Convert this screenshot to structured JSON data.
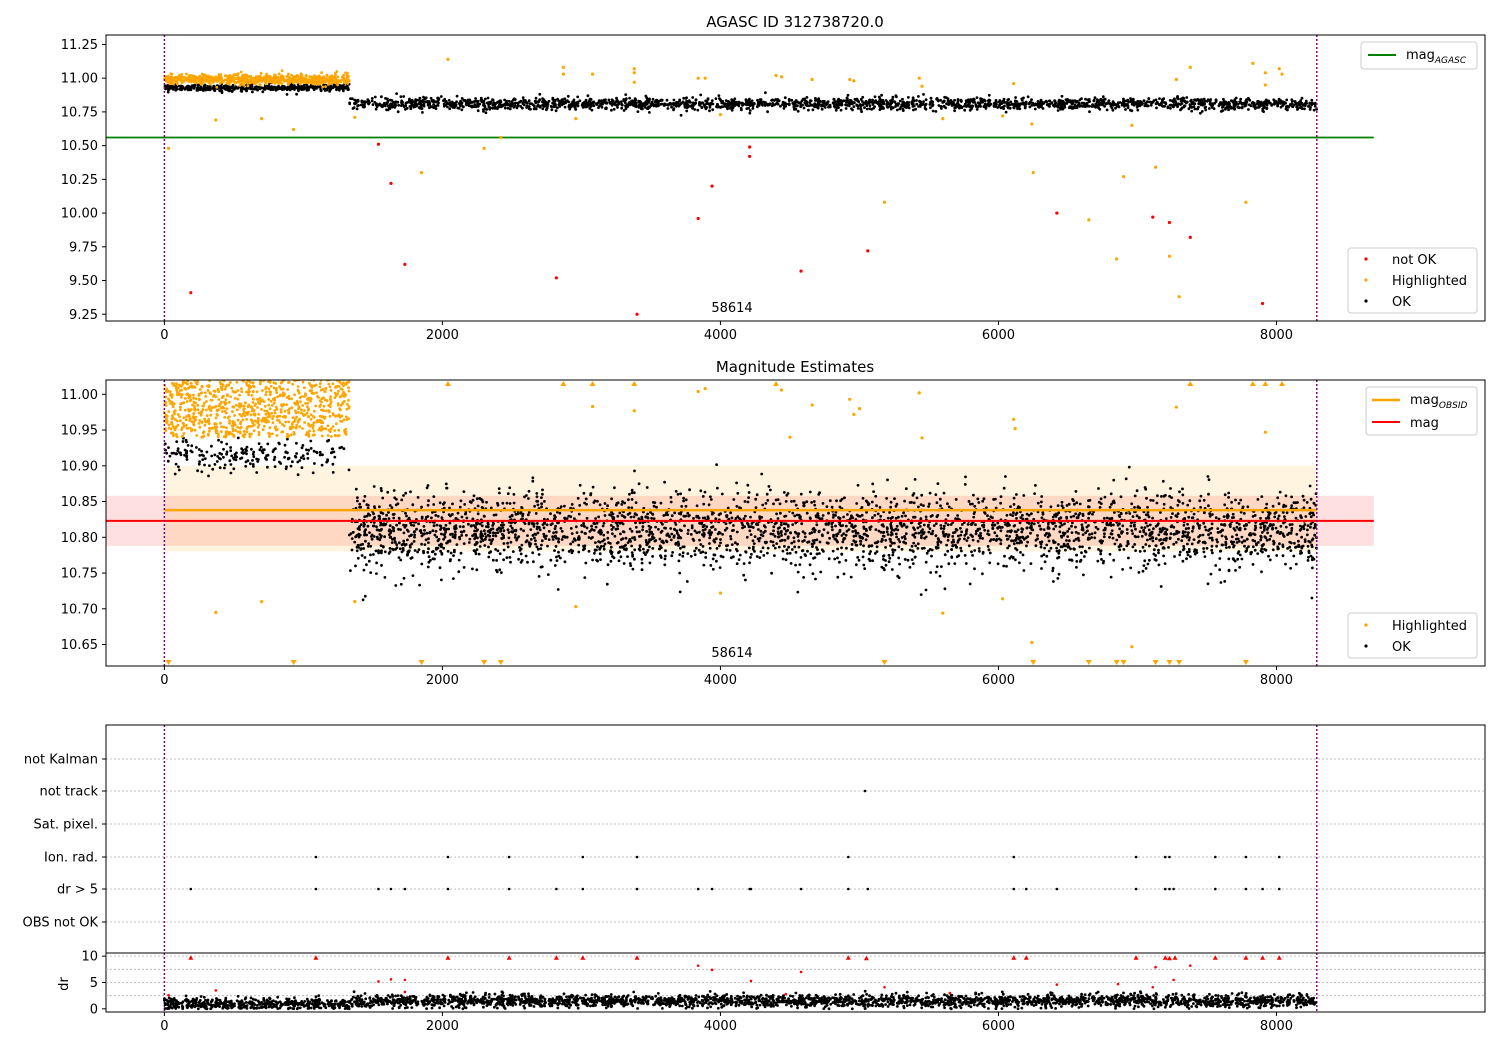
{
  "panels": {
    "top": {
      "title": "AGASC ID 312738720.0",
      "xlim": [
        -420,
        9500
      ],
      "ylim": [
        9.2,
        11.32
      ],
      "xticks": [
        0,
        2000,
        4000,
        6000,
        8000
      ],
      "yticks": [
        9.25,
        9.5,
        9.75,
        10.0,
        10.25,
        10.5,
        10.75,
        11.0,
        11.25
      ],
      "ytick_labels": [
        "9.25",
        "9.50",
        "9.75",
        "10.00",
        "10.25",
        "10.50",
        "10.75",
        "11.00",
        "11.25"
      ],
      "vlines": [
        0,
        8290
      ],
      "obsid_label": "58614",
      "obsid_label_x": 4000,
      "legend_lines": [
        {
          "label": "mag",
          "sub": "AGASC",
          "color": "#008000"
        }
      ],
      "legend_points": [
        {
          "label": "not OK",
          "color": "#ff0000"
        },
        {
          "label": "Highlighted",
          "color": "#ffa500"
        },
        {
          "label": "OK",
          "color": "#000000"
        }
      ],
      "hline": {
        "y": 10.56,
        "x0": -420,
        "x1": 8700,
        "color": "#008000"
      }
    },
    "middle": {
      "title": "Magnitude Estimates",
      "xlim": [
        -420,
        9500
      ],
      "ylim": [
        10.62,
        11.02
      ],
      "xticks": [
        0,
        2000,
        4000,
        6000,
        8000
      ],
      "yticks": [
        10.65,
        10.7,
        10.75,
        10.8,
        10.85,
        10.9,
        10.95,
        11.0
      ],
      "ytick_labels": [
        "10.65",
        "10.70",
        "10.75",
        "10.80",
        "10.85",
        "10.90",
        "10.95",
        "11.00"
      ],
      "vlines": [
        0,
        8290
      ],
      "obsid_label": "58614",
      "obsid_label_x": 4000,
      "legend_lines": [
        {
          "label": "mag",
          "sub": "OBSID",
          "color": "#ffa500"
        },
        {
          "label": "mag",
          "sub": "",
          "color": "#ff0000"
        }
      ],
      "legend_points": [
        {
          "label": "Highlighted",
          "color": "#ffa500"
        },
        {
          "label": "OK",
          "color": "#000000"
        }
      ],
      "mag_line": {
        "y": 10.823,
        "band": [
          10.788,
          10.858
        ],
        "x0": -420,
        "x1": 8700
      },
      "obsid_line": {
        "y": 10.838,
        "band": [
          10.78,
          10.9
        ],
        "x0": 0,
        "x1": 8290
      }
    },
    "flags": {
      "xlim": [
        -420,
        9500
      ],
      "xticks": [
        0,
        2000,
        4000,
        6000,
        8000
      ],
      "vlines": [
        0,
        8290
      ],
      "categories": [
        "not Kalman",
        "not track",
        "Sat. pixel.",
        "Ion. rad.",
        "dr > 5",
        "OBS not OK"
      ],
      "events": {
        "not track": [
          5040
        ],
        "Ion. rad.": [
          1090,
          2040,
          2480,
          3010,
          3400,
          4920,
          6110,
          6990,
          7200,
          7230,
          7560,
          7780,
          8020
        ],
        "dr > 5": [
          190,
          1090,
          1540,
          1630,
          1730,
          2040,
          2480,
          2820,
          3010,
          3400,
          3840,
          3940,
          4210,
          4220,
          4580,
          4920,
          5060,
          6110,
          6200,
          6420,
          6990,
          7200,
          7230,
          7260,
          7560,
          7780,
          7900,
          8020
        ]
      },
      "dr_ylabel": "dr",
      "dr_yticks": [
        0,
        5,
        10
      ],
      "dr_ylim": [
        -0.6,
        10.6
      ],
      "dr_red": [
        {
          "x": 190,
          "y": 9.7
        },
        {
          "x": 1090,
          "y": 9.7
        },
        {
          "x": 2040,
          "y": 9.7
        },
        {
          "x": 2480,
          "y": 9.7
        },
        {
          "x": 2820,
          "y": 9.7
        },
        {
          "x": 3010,
          "y": 9.7
        },
        {
          "x": 3400,
          "y": 9.7
        },
        {
          "x": 4920,
          "y": 9.7
        },
        {
          "x": 5050,
          "y": 9.6
        },
        {
          "x": 6110,
          "y": 9.7
        },
        {
          "x": 6200,
          "y": 9.7
        },
        {
          "x": 6990,
          "y": 9.7
        },
        {
          "x": 7200,
          "y": 9.7
        },
        {
          "x": 7230,
          "y": 9.6
        },
        {
          "x": 7270,
          "y": 9.7
        },
        {
          "x": 7560,
          "y": 9.7
        },
        {
          "x": 7780,
          "y": 9.7
        },
        {
          "x": 7900,
          "y": 9.7
        },
        {
          "x": 8020,
          "y": 9.7
        },
        {
          "x": 30,
          "y": 2.6
        },
        {
          "x": 370,
          "y": 3.5
        },
        {
          "x": 1540,
          "y": 5.2
        },
        {
          "x": 1630,
          "y": 5.6
        },
        {
          "x": 1730,
          "y": 5.5
        },
        {
          "x": 1730,
          "y": 3.2
        },
        {
          "x": 3840,
          "y": 8.2
        },
        {
          "x": 3940,
          "y": 7.4
        },
        {
          "x": 4220,
          "y": 5.3
        },
        {
          "x": 4580,
          "y": 7.0
        },
        {
          "x": 5180,
          "y": 4.1
        },
        {
          "x": 6420,
          "y": 4.6
        },
        {
          "x": 6860,
          "y": 4.7
        },
        {
          "x": 7130,
          "y": 7.9
        },
        {
          "x": 7110,
          "y": 4.1
        },
        {
          "x": 7260,
          "y": 5.5
        },
        {
          "x": 7380,
          "y": 8.2
        },
        {
          "x": 4470,
          "y": 2.8
        },
        {
          "x": 5650,
          "y": 3.0
        }
      ]
    }
  },
  "chart_data": [
    {
      "type": "scatter",
      "title": "AGASC ID 312738720.0",
      "xlabel": "",
      "ylabel": "",
      "xlim": [
        -420,
        9500
      ],
      "ylim": [
        9.2,
        11.32
      ],
      "series": [
        {
          "name": "not OK",
          "color": "#ff0000",
          "points": [
            [
              190,
              9.41
            ],
            [
              1540,
              10.51
            ],
            [
              1630,
              10.22
            ],
            [
              1730,
              9.62
            ],
            [
              2820,
              9.52
            ],
            [
              3400,
              9.25
            ],
            [
              3840,
              9.96
            ],
            [
              3940,
              10.2
            ],
            [
              4210,
              10.49
            ],
            [
              4210,
              10.42
            ],
            [
              4580,
              9.57
            ],
            [
              5060,
              9.72
            ],
            [
              6420,
              10.0
            ],
            [
              7110,
              9.97
            ],
            [
              7230,
              9.93
            ],
            [
              7380,
              9.82
            ],
            [
              7900,
              9.33
            ]
          ]
        },
        {
          "name": "Highlighted",
          "color": "#ffa500",
          "points": [
            [
              30,
              10.48
            ],
            [
              370,
              10.69
            ],
            [
              700,
              10.7
            ],
            [
              930,
              10.62
            ],
            [
              1370,
              10.71
            ],
            [
              1850,
              10.3
            ],
            [
              2040,
              11.14
            ],
            [
              2300,
              10.48
            ],
            [
              2420,
              10.56
            ],
            [
              2870,
              11.08
            ],
            [
              2870,
              11.03
            ],
            [
              2960,
              10.7
            ],
            [
              3080,
              11.03
            ],
            [
              3380,
              11.07
            ],
            [
              3380,
              11.04
            ],
            [
              3380,
              10.97
            ],
            [
              3840,
              11.0
            ],
            [
              3890,
              11.0
            ],
            [
              4000,
              10.73
            ],
            [
              4400,
              11.02
            ],
            [
              4440,
              11.01
            ],
            [
              4660,
              10.99
            ],
            [
              4930,
              10.99
            ],
            [
              4960,
              10.98
            ],
            [
              5180,
              10.08
            ],
            [
              5430,
              11.0
            ],
            [
              5450,
              10.94
            ],
            [
              5600,
              10.7
            ],
            [
              6030,
              10.72
            ],
            [
              6110,
              10.96
            ],
            [
              6240,
              10.66
            ],
            [
              6250,
              10.3
            ],
            [
              6650,
              9.95
            ],
            [
              6850,
              9.66
            ],
            [
              6900,
              10.27
            ],
            [
              6960,
              10.65
            ],
            [
              7130,
              10.34
            ],
            [
              7230,
              9.68
            ],
            [
              7280,
              10.99
            ],
            [
              7300,
              9.38
            ],
            [
              7380,
              11.08
            ],
            [
              7780,
              10.08
            ],
            [
              7830,
              11.11
            ],
            [
              7920,
              11.04
            ],
            [
              7920,
              10.95
            ],
            [
              8020,
              11.07
            ],
            [
              8040,
              11.03
            ]
          ]
        },
        {
          "name": "OK",
          "color": "#000000",
          "summary": {
            "x_range_1": [
              0,
              1330
            ],
            "y_center_1": 10.93,
            "x_range_2": [
              1330,
              8290
            ],
            "y_center_2": 10.81
          }
        }
      ],
      "lines": [
        {
          "name": "mag_AGASC",
          "y": 10.56,
          "color": "#008000"
        }
      ],
      "annotations": [
        "58614"
      ],
      "legend": "top-right"
    },
    {
      "type": "scatter",
      "title": "Magnitude Estimates",
      "xlabel": "",
      "ylabel": "",
      "xlim": [
        -420,
        9500
      ],
      "ylim": [
        10.62,
        11.02
      ],
      "series": [
        {
          "name": "Highlighted",
          "color": "#ffa500",
          "summary": {
            "x_range": [
              0,
              1330
            ],
            "y_range": [
              10.94,
              11.02
            ]
          }
        },
        {
          "name": "OK",
          "color": "#000000",
          "summary": {
            "x_range_1": [
              0,
              1330
            ],
            "y_center_1": 10.92,
            "x_range_2": [
              1330,
              8290
            ],
            "y_center_2": 10.81,
            "y_sd_2": 0.027
          }
        }
      ],
      "lines": [
        {
          "name": "mag_OBSID",
          "y": 10.838,
          "band": [
            10.78,
            10.9
          ],
          "color": "#ffa500"
        },
        {
          "name": "mag",
          "y": 10.823,
          "band": [
            10.788,
            10.858
          ],
          "color": "#ff0000"
        }
      ],
      "annotations": [
        "58614"
      ],
      "legend": "top-right / bottom-right"
    },
    {
      "type": "scatter",
      "title": "",
      "categories": [
        "not Kalman",
        "not track",
        "Sat. pixel.",
        "Ion. rad.",
        "dr > 5",
        "OBS not OK"
      ],
      "ylabel": "dr",
      "xlim": [
        -420,
        9500
      ],
      "dr_ylim": [
        -0.6,
        10.6
      ]
    }
  ]
}
